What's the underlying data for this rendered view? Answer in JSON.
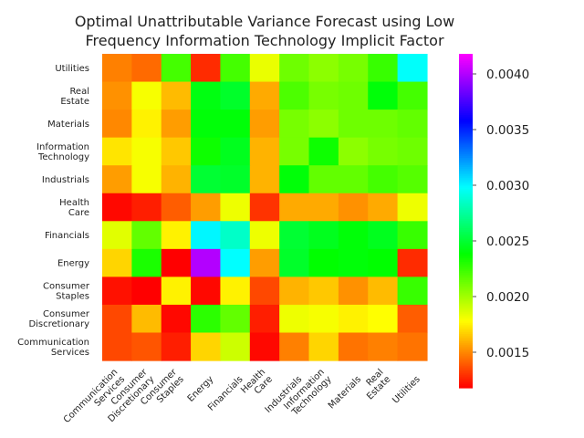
{
  "chart_data": {
    "type": "heatmap",
    "title_lines": [
      "Optimal Unattributable Variance Forecast using Low",
      "Frequency Information Technology Implicit Factor"
    ],
    "xlabel": "",
    "ylabel": "",
    "x_labels": [
      "Communication Services",
      "Consumer Discretionary",
      "Consumer Staples",
      "Energy",
      "Financials",
      "Health Care",
      "Industrials",
      "Information Technology",
      "Materials",
      "Real Estate",
      "Utilities"
    ],
    "y_labels": [
      "Utilities",
      "Real Estate",
      "Materials",
      "Information Technology",
      "Industrials",
      "Health Care",
      "Financials",
      "Energy",
      "Consumer Staples",
      "Consumer Discretionary",
      "Communication Services"
    ],
    "values": [
      [
        0.00148,
        0.00143,
        0.00222,
        0.00128,
        0.00222,
        0.00183,
        0.00212,
        0.00205,
        0.0021,
        0.00225,
        0.00297
      ],
      [
        0.00152,
        0.0018,
        0.00162,
        0.00242,
        0.00248,
        0.00158,
        0.0022,
        0.0021,
        0.00212,
        0.0024,
        0.00222
      ],
      [
        0.0015,
        0.00175,
        0.00155,
        0.0024,
        0.0024,
        0.00155,
        0.0021,
        0.00205,
        0.00212,
        0.00212,
        0.00215
      ],
      [
        0.00172,
        0.0018,
        0.00165,
        0.00235,
        0.00245,
        0.0016,
        0.0021,
        0.00235,
        0.00205,
        0.0021,
        0.00212
      ],
      [
        0.00155,
        0.0018,
        0.0016,
        0.0025,
        0.00248,
        0.0016,
        0.0024,
        0.00215,
        0.00215,
        0.00222,
        0.00218
      ],
      [
        0.0012,
        0.00125,
        0.0014,
        0.00155,
        0.00182,
        0.0013,
        0.00158,
        0.00158,
        0.00152,
        0.00158,
        0.00182
      ],
      [
        0.00185,
        0.00215,
        0.00175,
        0.003,
        0.00285,
        0.00182,
        0.0025,
        0.00245,
        0.0024,
        0.00245,
        0.00225
      ],
      [
        0.00168,
        0.00232,
        0.00118,
        0.004,
        0.00298,
        0.00155,
        0.00248,
        0.00238,
        0.0024,
        0.00238,
        0.00128
      ],
      [
        0.00122,
        0.00118,
        0.00175,
        0.0012,
        0.00175,
        0.00135,
        0.0016,
        0.00165,
        0.00152,
        0.00162,
        0.00225
      ],
      [
        0.00135,
        0.00162,
        0.0012,
        0.00228,
        0.00215,
        0.00125,
        0.00182,
        0.0018,
        0.00175,
        0.00178,
        0.0014
      ],
      [
        0.00135,
        0.00138,
        0.00125,
        0.00168,
        0.0019,
        0.0012,
        0.00148,
        0.00168,
        0.00145,
        0.00148,
        0.00145
      ]
    ],
    "colorbar": {
      "colormap": "gist_rainbow",
      "vmin": 0.00118,
      "vmax": 0.00418,
      "ticks": [
        0.0015,
        0.002,
        0.0025,
        0.003,
        0.0035,
        0.004
      ],
      "tick_labels": [
        "0.0015",
        "0.0020",
        "0.0025",
        "0.0030",
        "0.0035",
        "0.0040"
      ]
    },
    "grid": false,
    "legend": "none"
  }
}
